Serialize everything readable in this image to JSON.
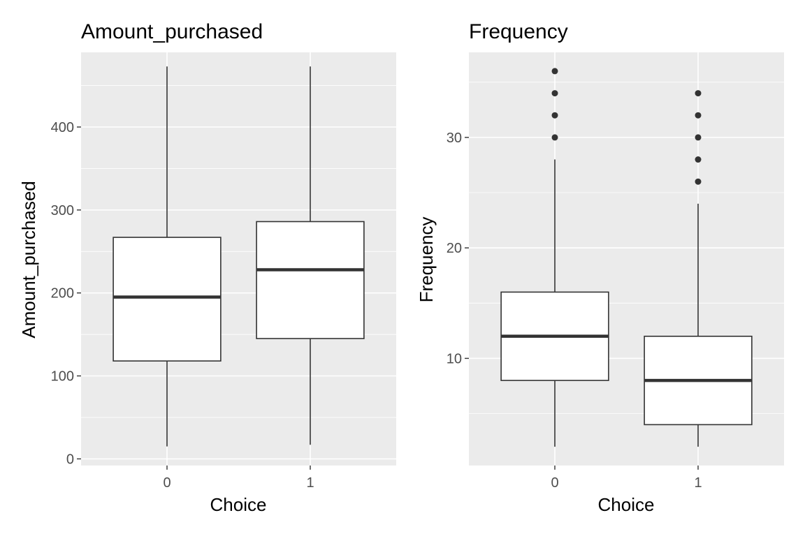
{
  "chart_data": [
    {
      "type": "box",
      "title": "Amount_purchased",
      "xlabel": "Choice",
      "ylabel": "Amount_purchased",
      "categories": [
        "0",
        "1"
      ],
      "ylim": [
        -8,
        490
      ],
      "y_ticks": [
        0,
        100,
        200,
        300,
        400
      ],
      "grid": true,
      "boxes": [
        {
          "category": "0",
          "whisker_low": 15,
          "q1": 118,
          "median": 195,
          "q3": 267,
          "whisker_high": 473,
          "outliers": []
        },
        {
          "category": "1",
          "whisker_low": 17,
          "q1": 145,
          "median": 228,
          "q3": 286,
          "whisker_high": 473,
          "outliers": []
        }
      ]
    },
    {
      "type": "box",
      "title": "Frequency",
      "xlabel": "Choice",
      "ylabel": "Frequency",
      "categories": [
        "0",
        "1"
      ],
      "ylim": [
        0.3,
        37.7
      ],
      "y_ticks": [
        10,
        20,
        30
      ],
      "grid": true,
      "boxes": [
        {
          "category": "0",
          "whisker_low": 2,
          "q1": 8,
          "median": 12,
          "q3": 16,
          "whisker_high": 28,
          "outliers": [
            30,
            32,
            34,
            36
          ]
        },
        {
          "category": "1",
          "whisker_low": 2,
          "q1": 4,
          "median": 8,
          "q3": 12,
          "whisker_high": 24,
          "outliers": [
            26,
            28,
            30,
            32,
            34
          ]
        }
      ]
    }
  ]
}
